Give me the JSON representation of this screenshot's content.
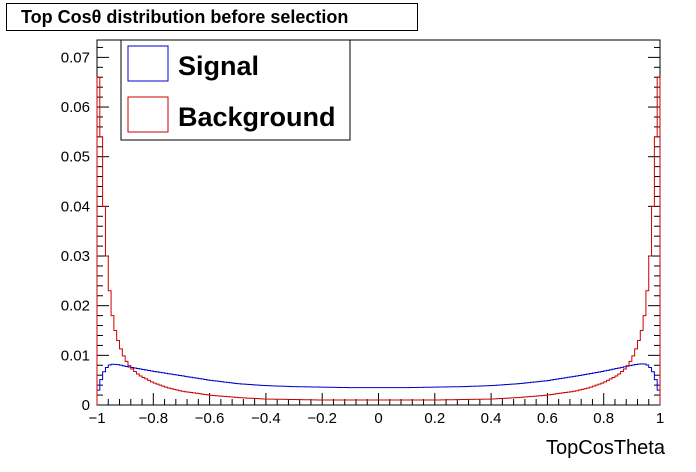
{
  "chart_data": {
    "type": "histogram",
    "title": "Top Cosθ distribution before selection",
    "xlabel": "TopCosTheta",
    "ylabel": "",
    "xlim": [
      -1,
      1
    ],
    "ylim": [
      0,
      0.0735
    ],
    "bins": 200,
    "x_ticks": [
      "−1",
      "−0.8",
      "−0.6",
      "−0.4",
      "−0.2",
      "0",
      "0.2",
      "0.4",
      "0.6",
      "0.8",
      "1"
    ],
    "y_ticks": [
      "0",
      "0.01",
      "0.02",
      "0.03",
      "0.04",
      "0.05",
      "0.06",
      "0.07"
    ],
    "legend": {
      "placement": "top-left"
    },
    "series": [
      {
        "name": "Signal",
        "color": "#0000cc",
        "x": [
          -1.0,
          -0.99,
          -0.98,
          -0.97,
          -0.96,
          -0.95,
          -0.94,
          -0.92,
          -0.9,
          -0.85,
          -0.8,
          -0.7,
          -0.6,
          -0.5,
          -0.4,
          -0.3,
          -0.2,
          -0.1,
          0.0,
          0.1,
          0.2,
          0.3,
          0.4,
          0.5,
          0.6,
          0.7,
          0.8,
          0.85,
          0.9,
          0.92,
          0.94,
          0.95,
          0.96,
          0.97,
          0.98,
          0.99,
          1.0
        ],
        "y": [
          0.002,
          0.004,
          0.0062,
          0.0072,
          0.0079,
          0.0082,
          0.0082,
          0.0081,
          0.0078,
          0.0073,
          0.0068,
          0.0059,
          0.005,
          0.0043,
          0.0039,
          0.0037,
          0.0036,
          0.0035,
          0.0035,
          0.0035,
          0.0036,
          0.0037,
          0.0039,
          0.0043,
          0.0049,
          0.0058,
          0.0068,
          0.0074,
          0.008,
          0.0082,
          0.0083,
          0.0082,
          0.0079,
          0.0072,
          0.0062,
          0.004,
          0.002
        ]
      },
      {
        "name": "Background",
        "color": "#cc0000",
        "x": [
          -1.0,
          -0.99,
          -0.98,
          -0.97,
          -0.96,
          -0.95,
          -0.94,
          -0.92,
          -0.9,
          -0.88,
          -0.85,
          -0.8,
          -0.75,
          -0.7,
          -0.6,
          -0.5,
          -0.4,
          -0.3,
          -0.2,
          -0.1,
          0.0,
          0.1,
          0.2,
          0.3,
          0.4,
          0.5,
          0.6,
          0.7,
          0.75,
          0.8,
          0.85,
          0.88,
          0.9,
          0.92,
          0.94,
          0.95,
          0.96,
          0.97,
          0.98,
          0.99,
          1.0
        ],
        "y": [
          0.07,
          0.062,
          0.046,
          0.034,
          0.026,
          0.02,
          0.016,
          0.012,
          0.0092,
          0.0075,
          0.006,
          0.0045,
          0.0035,
          0.0028,
          0.002,
          0.0015,
          0.0012,
          0.0011,
          0.001,
          0.001,
          0.001,
          0.001,
          0.001,
          0.0011,
          0.0012,
          0.0015,
          0.002,
          0.0028,
          0.0035,
          0.0045,
          0.006,
          0.0075,
          0.0092,
          0.012,
          0.016,
          0.02,
          0.026,
          0.034,
          0.046,
          0.062,
          0.07
        ]
      }
    ]
  }
}
